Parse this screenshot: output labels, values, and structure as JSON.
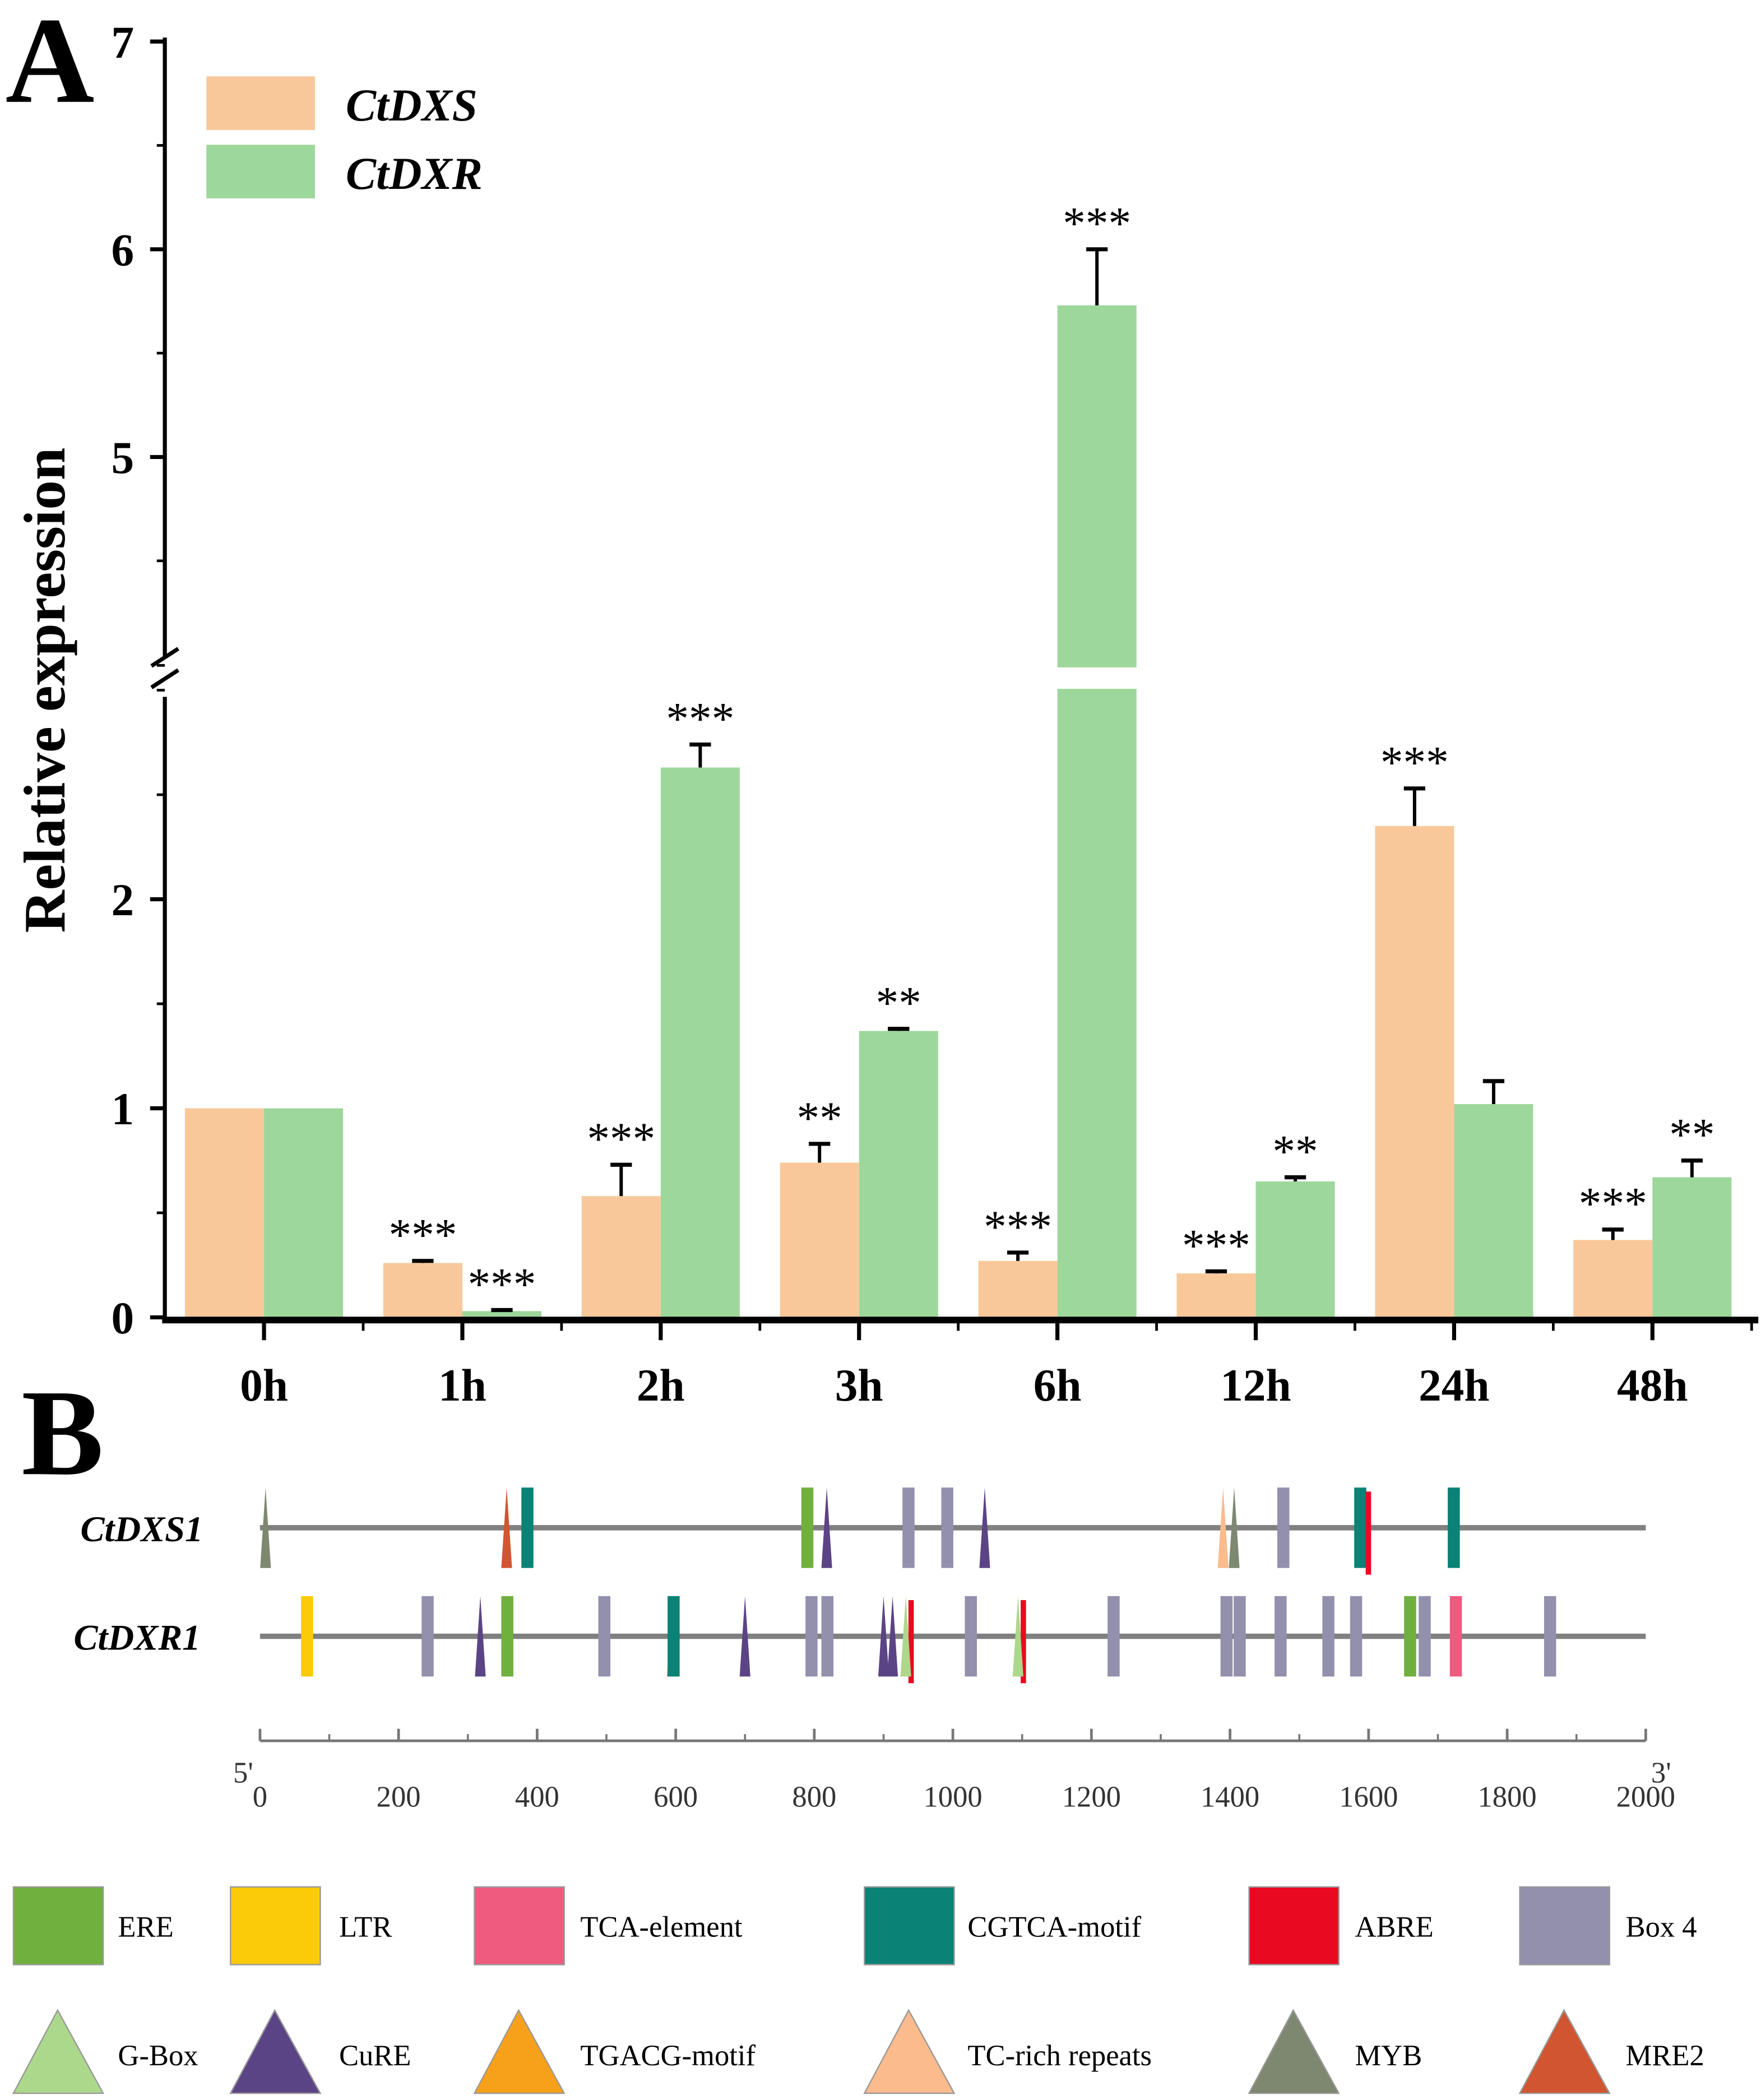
{
  "panels": {
    "a": "A",
    "b": "B"
  },
  "chart_data": {
    "type": "bar",
    "ylabel": "Relative expression",
    "xlabel": "",
    "ylim": [
      0,
      7
    ],
    "axis_break": [
      3,
      4
    ],
    "y_ticks": [
      "0",
      "1",
      "2",
      "5",
      "6",
      "7"
    ],
    "y_tick_values": [
      0,
      1,
      2,
      5,
      6,
      7
    ],
    "categories": [
      "0h",
      "1h",
      "2h",
      "3h",
      "6h",
      "12h",
      "24h",
      "48h"
    ],
    "legend_position": "top-left",
    "series": [
      {
        "name": "CtDXS",
        "color": "#f9c89a",
        "values": [
          1.0,
          0.26,
          0.58,
          0.74,
          0.27,
          0.21,
          2.35,
          0.37
        ],
        "error_top": [
          1.0,
          0.27,
          0.73,
          0.83,
          0.31,
          0.22,
          2.53,
          0.42
        ],
        "significance": [
          "",
          "***",
          "***",
          "**",
          "***",
          "***",
          "***",
          "***"
        ]
      },
      {
        "name": "CtDXR",
        "color": "#9ed79b",
        "values": [
          1.0,
          0.03,
          2.63,
          1.37,
          5.73,
          0.65,
          1.02,
          0.67
        ],
        "error_top": [
          1.0,
          0.035,
          2.74,
          1.38,
          6.0,
          0.67,
          1.13,
          0.75
        ],
        "significance": [
          "",
          "***",
          "***",
          "**",
          "***",
          "**",
          "",
          "**"
        ]
      }
    ]
  },
  "promoter": {
    "scale": {
      "start_label": "5'",
      "end_label": "3'",
      "ticks": [
        "0",
        "200",
        "400",
        "600",
        "800",
        "1000",
        "1200",
        "1400",
        "1600",
        "1800",
        "2000"
      ],
      "max": 2000
    },
    "genes": [
      {
        "name": "CtDXS1",
        "elements": [
          [
            "MYB",
            8
          ],
          [
            "MRE2",
            356
          ],
          [
            "CGTCA-motif",
            385
          ],
          [
            "ERE",
            789
          ],
          [
            "CuRE",
            818
          ],
          [
            "Box 4",
            935
          ],
          [
            "Box 4",
            991
          ],
          [
            "CuRE",
            1046
          ],
          [
            "TC-rich repeats",
            1390
          ],
          [
            "MYB",
            1406
          ],
          [
            "Box 4",
            1476
          ],
          [
            "CGTCA-motif",
            1587
          ],
          [
            "ABRE",
            1592
          ],
          [
            "CGTCA-motif",
            1722
          ]
        ]
      },
      {
        "name": "CtDXR1",
        "elements": [
          [
            "LTR",
            67
          ],
          [
            "Box 4",
            241
          ],
          [
            "CuRE",
            318
          ],
          [
            "ERE",
            356
          ],
          [
            "Box 4",
            496
          ],
          [
            "TGACG-motif",
            595
          ],
          [
            "CGTCA-motif",
            596
          ],
          [
            "CuRE",
            700
          ],
          [
            "Box 4",
            795
          ],
          [
            "Box 4",
            818
          ],
          [
            "CuRE",
            900
          ],
          [
            "CuRE",
            913
          ],
          [
            "ABRE",
            932
          ],
          [
            "G-Box",
            932
          ],
          [
            "Box 4",
            1025
          ],
          [
            "ABRE",
            1094
          ],
          [
            "G-Box",
            1094
          ],
          [
            "Box 4",
            1231
          ],
          [
            "Box 4",
            1394
          ],
          [
            "Box 4",
            1413
          ],
          [
            "Box 4",
            1472
          ],
          [
            "Box 4",
            1541
          ],
          [
            "Box 4",
            1581
          ],
          [
            "ERE",
            1659
          ],
          [
            "Box 4",
            1680
          ],
          [
            "TCA-element",
            1725
          ],
          [
            "Box 4",
            1861
          ]
        ]
      }
    ],
    "legend": [
      {
        "label": "ERE",
        "shape": "rect",
        "color": "#70b03e"
      },
      {
        "label": "LTR",
        "shape": "rect",
        "color": "#fbcb0a"
      },
      {
        "label": "TCA-element",
        "shape": "rect",
        "color": "#ee5b7e"
      },
      {
        "label": "CGTCA-motif",
        "shape": "rect",
        "color": "#0a8275"
      },
      {
        "label": "ABRE",
        "shape": "rect",
        "color": "#e90a22"
      },
      {
        "label": "Box 4",
        "shape": "rect",
        "color": "#9390ad"
      },
      {
        "label": "G-Box",
        "shape": "triangle",
        "color": "#acd88b"
      },
      {
        "label": "CuRE",
        "shape": "triangle",
        "color": "#5b4485"
      },
      {
        "label": "TGACG-motif",
        "shape": "triangle",
        "color": "#f7a11a"
      },
      {
        "label": "TC-rich repeats",
        "shape": "triangle",
        "color": "#fbbb8c"
      },
      {
        "label": "MYB",
        "shape": "triangle",
        "color": "#7e8871"
      },
      {
        "label": "MRE2",
        "shape": "triangle",
        "color": "#d05530"
      }
    ]
  }
}
